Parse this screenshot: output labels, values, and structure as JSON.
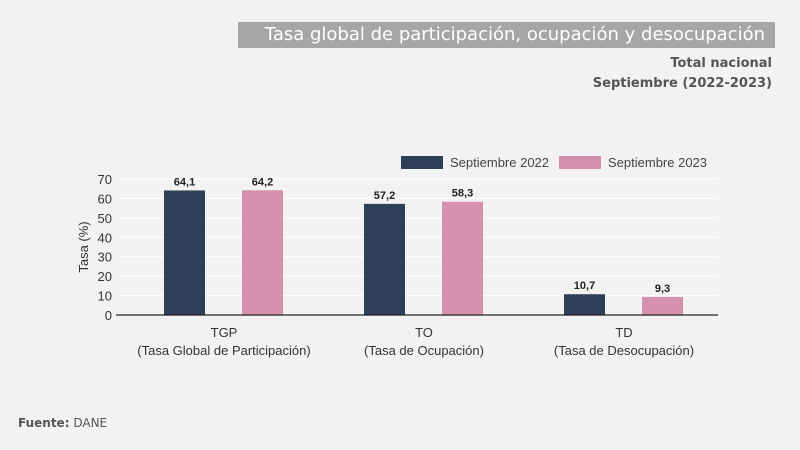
{
  "header": {
    "title": "Tasa global de participación, ocupación y desocupación",
    "subtitle1": "Total nacional",
    "subtitle2": "Septiembre (2022-2023)"
  },
  "footer": {
    "source_label": "Fuente:",
    "source_value": "DANE"
  },
  "chart_data": {
    "type": "bar",
    "categories": [
      [
        "TGP",
        "(Tasa Global de Participación)"
      ],
      [
        "TO",
        "(Tasa de Ocupación)"
      ],
      [
        "TD",
        "(Tasa de Desocupación)"
      ]
    ],
    "series": [
      {
        "name": "Septiembre 2022",
        "values": [
          64.1,
          57.2,
          10.7
        ],
        "labels": [
          "64,1",
          "57,2",
          "10,7"
        ],
        "color": "#2e4057"
      },
      {
        "name": "Septiembre 2023",
        "values": [
          64.2,
          58.3,
          9.3
        ],
        "labels": [
          "64,2",
          "58,3",
          "9,3"
        ],
        "color": "#d590ad"
      }
    ],
    "ylabel": "Tasa (%)",
    "ylim": [
      0,
      70
    ],
    "yticks": [
      0,
      10,
      20,
      30,
      40,
      50,
      60,
      70
    ],
    "grid": true,
    "legend": "top-right"
  }
}
